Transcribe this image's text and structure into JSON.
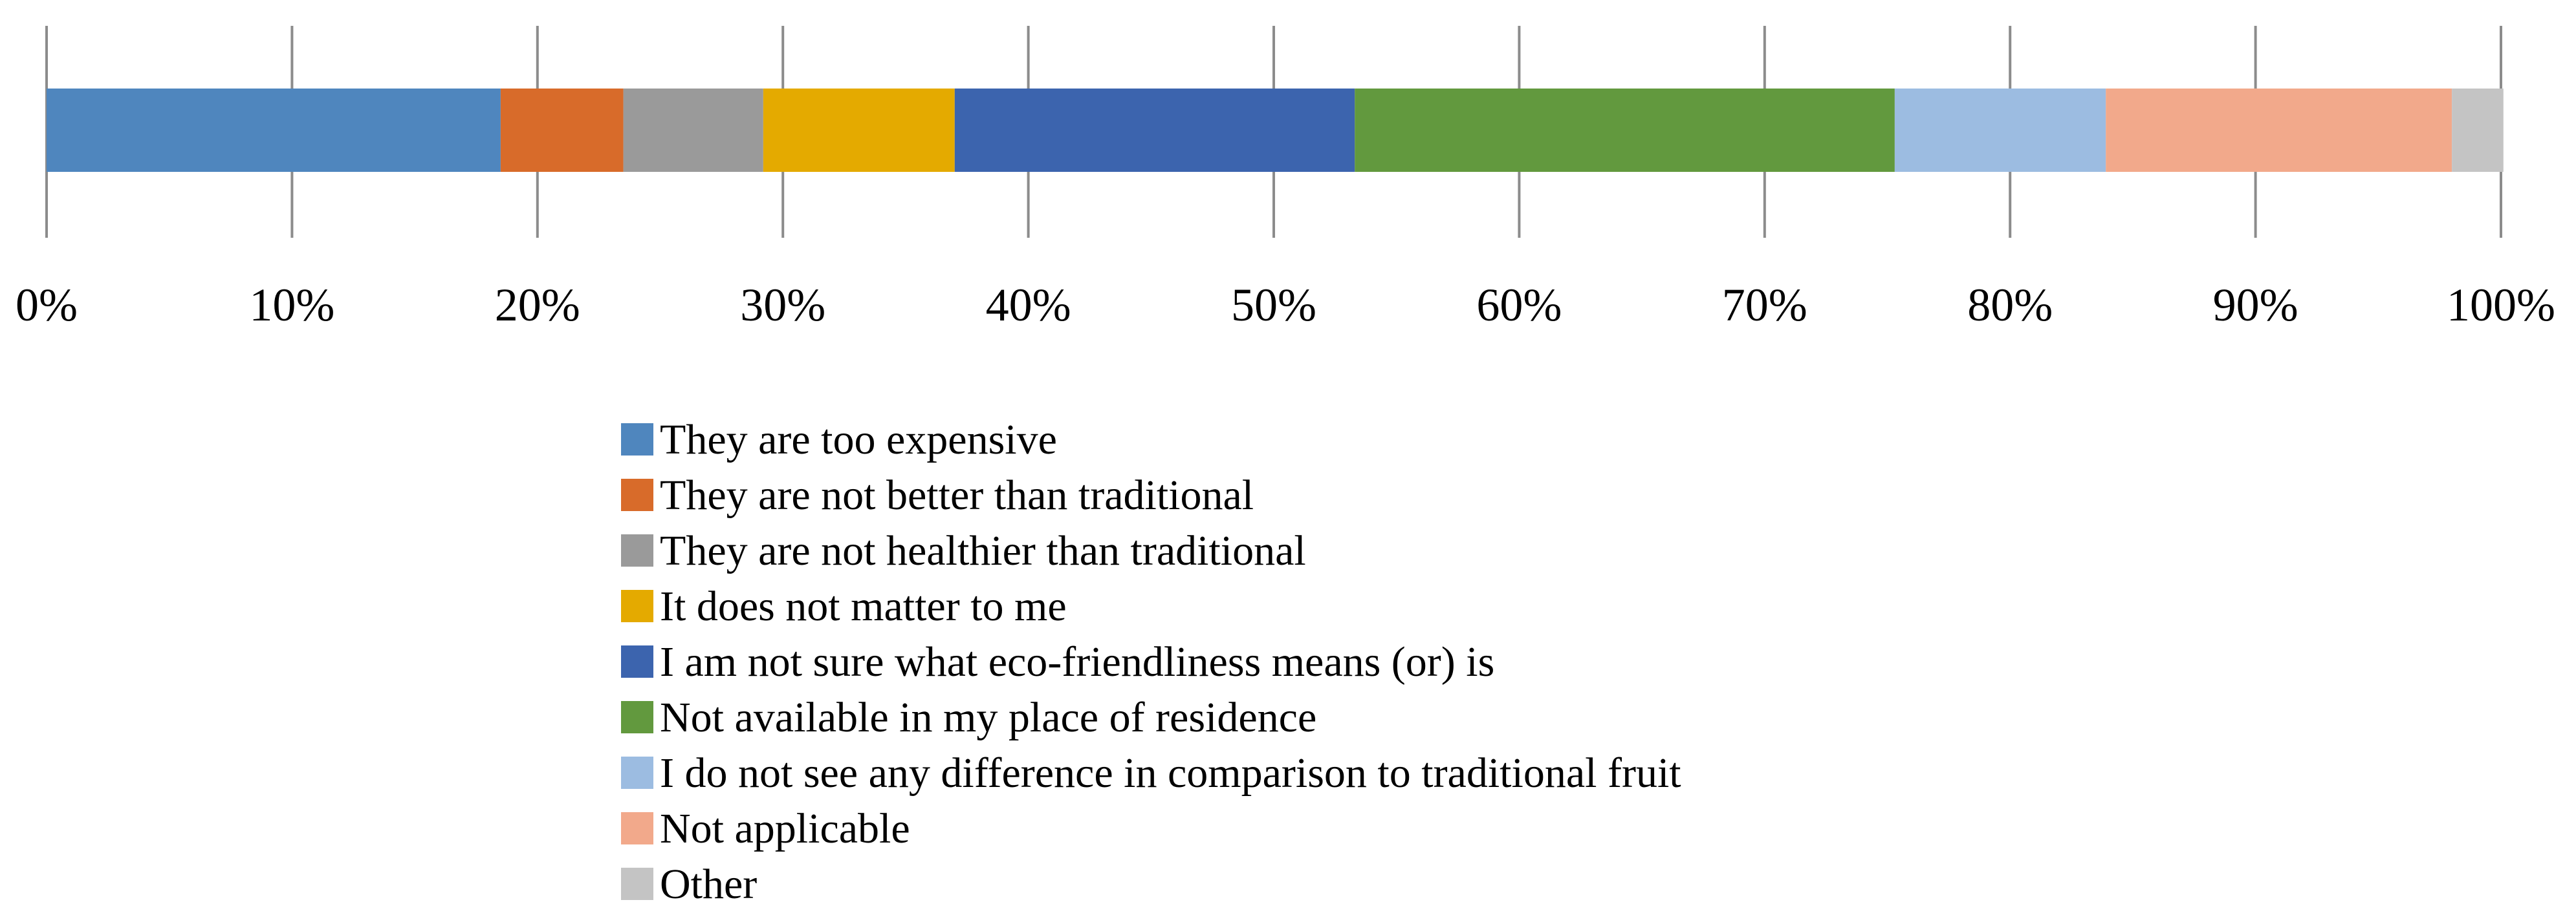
{
  "chart_data": {
    "type": "bar",
    "orientation": "horizontal",
    "stacked": true,
    "normalized_percent": true,
    "title": "",
    "xlabel": "",
    "ylabel": "",
    "xlim": [
      0,
      100
    ],
    "x_ticks": [
      "0%",
      "10%",
      "20%",
      "30%",
      "40%",
      "50%",
      "60%",
      "70%",
      "80%",
      "90%",
      "100%"
    ],
    "grid": true,
    "legend_position": "bottom",
    "series": [
      {
        "name": "They are too expensive",
        "value": 18.5,
        "color": "#4F86BE"
      },
      {
        "name": "They are not better than traditional",
        "value": 5.0,
        "color": "#D86B2A"
      },
      {
        "name": "They are not healthier than traditional",
        "value": 5.7,
        "color": "#9A9A9A"
      },
      {
        "name": "It does not matter to me",
        "value": 7.8,
        "color": "#E4AA00"
      },
      {
        "name": "I am not sure what eco-friendliness  means (or) is",
        "value": 16.3,
        "color": "#3C64AE"
      },
      {
        "name": "Not available in my place of residence",
        "value": 22.0,
        "color": "#62993E"
      },
      {
        "name": "I do not see any difference in comparison to traditional fruit",
        "value": 8.6,
        "color": "#9CBCE1"
      },
      {
        "name": "Not applicable",
        "value": 14.1,
        "color": "#F2A98B"
      },
      {
        "name": "Other",
        "value": 2.1,
        "color": "#C4C4C4"
      }
    ]
  }
}
